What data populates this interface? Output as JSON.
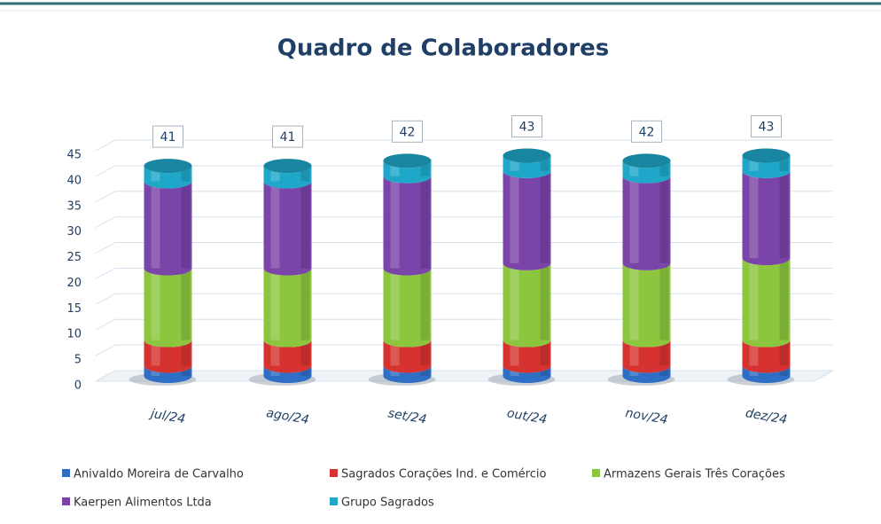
{
  "chart_data": {
    "type": "bar",
    "stacked": true,
    "title": "Quadro de Colaboradores",
    "categories": [
      "jul/24",
      "ago/24",
      "set/24",
      "out/24",
      "nov/24",
      "dez/24"
    ],
    "series": [
      {
        "name": "Anivaldo Moreira de Carvalho",
        "color": "#2e6ec4",
        "values": [
          2,
          2,
          2,
          2,
          2,
          2
        ]
      },
      {
        "name": "Sagrados Corações Ind. e Comércio",
        "color": "#d63330",
        "values": [
          5,
          5,
          5,
          5,
          5,
          5
        ]
      },
      {
        "name": "Armazens Gerais Três Corações",
        "color": "#8cc63e",
        "values": [
          14,
          14,
          14,
          15,
          15,
          16
        ]
      },
      {
        "name": "Kaerpen Alimentos Ltda",
        "color": "#7a44a8",
        "values": [
          17,
          17,
          18,
          18,
          17,
          17
        ]
      },
      {
        "name": "Grupo Sagrados",
        "color": "#1fa7c9",
        "values": [
          3,
          3,
          3,
          3,
          3,
          3
        ]
      }
    ],
    "totals": [
      41,
      41,
      42,
      43,
      42,
      43
    ],
    "ylim": [
      0,
      45
    ],
    "yticks": [
      0,
      5,
      10,
      15,
      20,
      25,
      30,
      35,
      40,
      45
    ],
    "grid": true
  }
}
